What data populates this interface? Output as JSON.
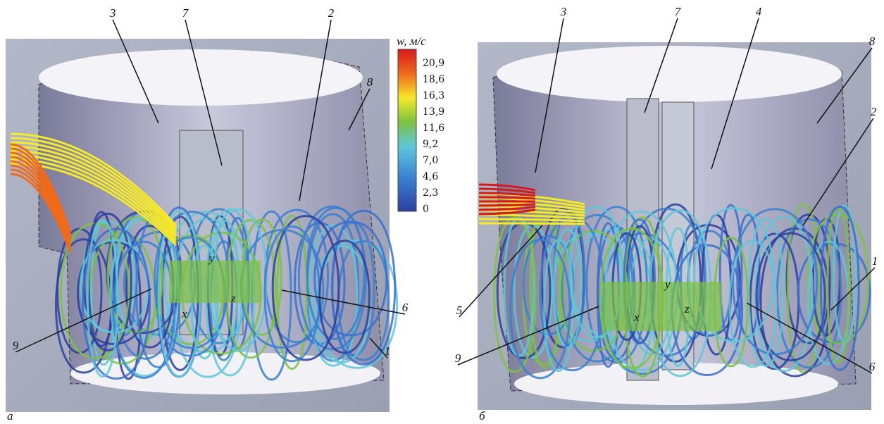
{
  "panels": [
    {
      "label": "а",
      "axes": [
        "x",
        "y",
        "z"
      ],
      "callouts": [
        "3",
        "7",
        "2",
        "8",
        "9",
        "6",
        "1"
      ]
    },
    {
      "label": "б",
      "axes": [
        "x",
        "y",
        "z"
      ],
      "callouts": [
        "3",
        "7",
        "4",
        "8",
        "2",
        "1",
        "5",
        "9",
        "6"
      ]
    }
  ],
  "colorbar": {
    "title": "w, м/с",
    "ticks": [
      "20,9",
      "18,6",
      "16,3",
      "13,9",
      "11,6",
      "9,2",
      "7,0",
      "4,6",
      "2,3",
      "0"
    ]
  }
}
